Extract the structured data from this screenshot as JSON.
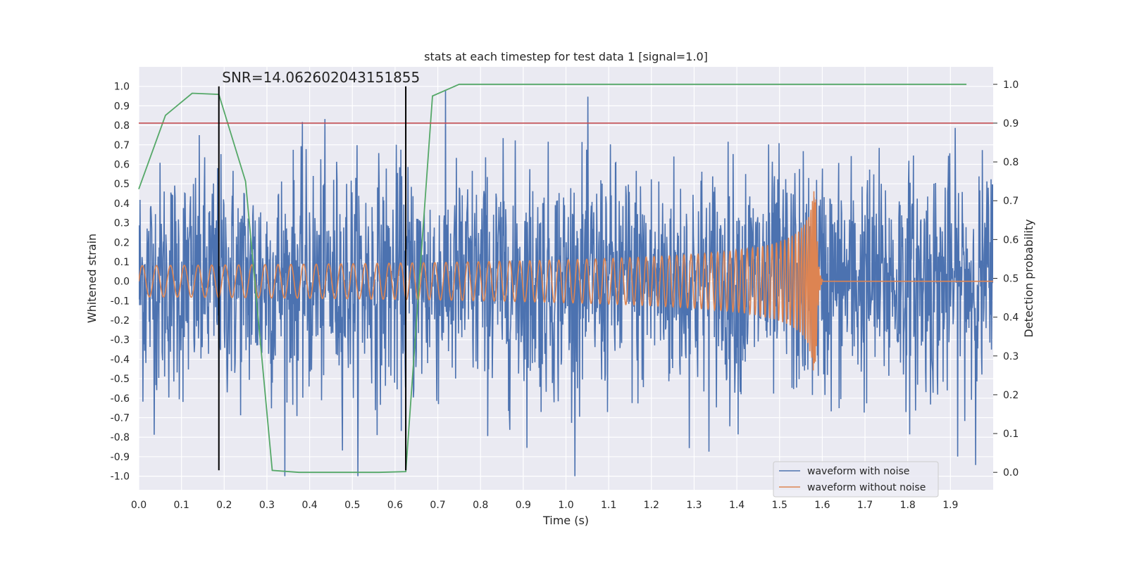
{
  "chart_data": {
    "type": "line",
    "title": "stats at each timestep for test data 1 [signal=1.0]",
    "xlabel": "Time (s)",
    "ylabel_left": "Whitened strain",
    "ylabel_right": "Detection probability",
    "xlim": [
      0.0,
      2.0
    ],
    "ylim_left": [
      -1.07,
      1.1
    ],
    "ylim_right": [
      -0.045,
      1.045
    ],
    "x_ticks": [
      "0.0",
      "0.1",
      "0.2",
      "0.3",
      "0.4",
      "0.5",
      "0.6",
      "0.7",
      "0.8",
      "0.9",
      "1.0",
      "1.1",
      "1.2",
      "1.3",
      "1.4",
      "1.5",
      "1.6",
      "1.7",
      "1.8",
      "1.9"
    ],
    "y_left_ticks": [
      "1.0",
      "0.9",
      "0.8",
      "0.7",
      "0.6",
      "0.5",
      "0.4",
      "0.3",
      "0.2",
      "0.1",
      "0.0",
      "-0.1",
      "-0.2",
      "-0.3",
      "-0.4",
      "-0.5",
      "-0.6",
      "-0.7",
      "-0.8",
      "-0.9",
      "-1.0"
    ],
    "y_right_ticks": [
      "1.0",
      "0.9",
      "0.8",
      "0.7",
      "0.6",
      "0.5",
      "0.4",
      "0.3",
      "0.2",
      "0.1",
      "0.0"
    ],
    "grid": true,
    "legend_position": "lower-right",
    "colors": {
      "noise": "#4c72b0",
      "clean": "#dd8452",
      "probability": "#55a868",
      "threshold": "#c44e52",
      "markers": "#000000",
      "plot_bg": "#eaeaf2"
    },
    "annotation": {
      "text": "SNR=14.062602043151855",
      "x": 0.195,
      "y": 1.02
    },
    "vertical_markers": [
      0.1875,
      0.625
    ],
    "threshold": {
      "axis": "right",
      "y": 0.9
    },
    "series": [
      {
        "name": "waveform with noise",
        "axis": "left",
        "kind": "noise",
        "x_range": [
          0.0,
          2.0
        ],
        "amplitude_typical": 0.3,
        "amplitude_peak": 1.0
      },
      {
        "name": "waveform without noise",
        "axis": "left",
        "kind": "chirp",
        "x_range": [
          0.0,
          2.0
        ],
        "merger_time": 1.585,
        "peak_amplitude": 0.48,
        "base_amplitude": 0.08
      },
      {
        "name": "Detection probability",
        "axis": "right",
        "kind": "line",
        "x": [
          0.0,
          0.0625,
          0.125,
          0.1875,
          0.25,
          0.3125,
          0.375,
          0.4375,
          0.5,
          0.5625,
          0.625,
          0.6875,
          0.75,
          0.8125,
          0.875,
          0.9375,
          1.0,
          1.0625,
          1.125,
          1.1875,
          1.25,
          1.3125,
          1.375,
          1.4375,
          1.5,
          1.5625,
          1.625,
          1.6875,
          1.75,
          1.8125,
          1.875,
          1.9375
        ],
        "y": [
          0.73,
          0.92,
          0.977,
          0.974,
          0.75,
          0.005,
          0.0,
          0.0,
          0.0,
          0.0,
          0.002,
          0.97,
          1.0,
          1.0,
          1.0,
          1.0,
          1.0,
          1.0,
          1.0,
          1.0,
          1.0,
          1.0,
          1.0,
          1.0,
          1.0,
          1.0,
          1.0,
          1.0,
          1.0,
          1.0,
          1.0,
          1.0
        ]
      }
    ]
  }
}
